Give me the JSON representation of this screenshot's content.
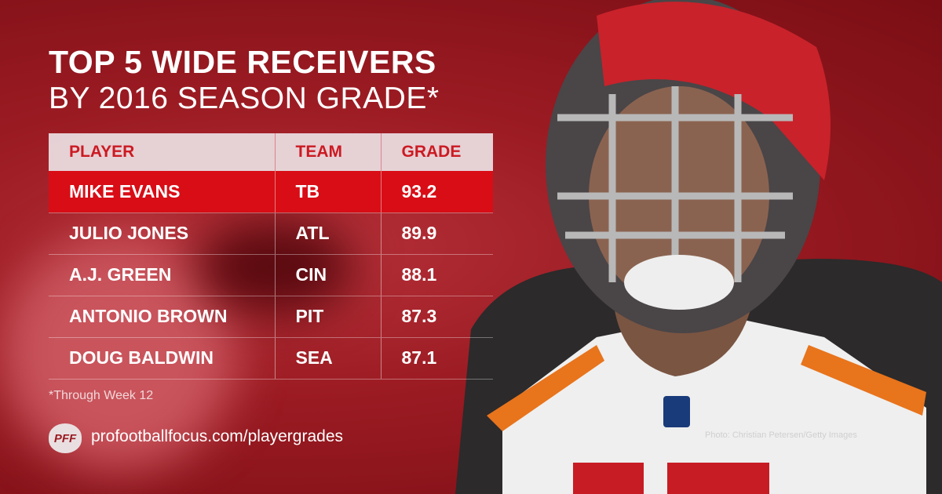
{
  "title": {
    "line1": "TOP 5 WIDE RECEIVERS",
    "line2": "BY 2016 SEASON GRADE*"
  },
  "table": {
    "headers": [
      "PLAYER",
      "TEAM",
      "GRADE"
    ],
    "rows": [
      {
        "player": "MIKE EVANS",
        "team": "TB",
        "grade": "93.2",
        "highlight": true
      },
      {
        "player": "JULIO JONES",
        "team": "ATL",
        "grade": "89.9"
      },
      {
        "player": "A.J. GREEN",
        "team": "CIN",
        "grade": "88.1"
      },
      {
        "player": "ANTONIO BROWN",
        "team": "PIT",
        "grade": "87.3"
      },
      {
        "player": "DOUG BALDWIN",
        "team": "SEA",
        "grade": "87.1"
      }
    ]
  },
  "footnote": "*Through Week 12",
  "logo": "PFF",
  "url": "profootballfocus.com/playergrades",
  "photo_credit": "Photo: Christian Petersen/Getty Images",
  "colors": {
    "accent": "#d80d16",
    "header_bg": "#ebe1e4",
    "header_text": "#cc1a22"
  }
}
